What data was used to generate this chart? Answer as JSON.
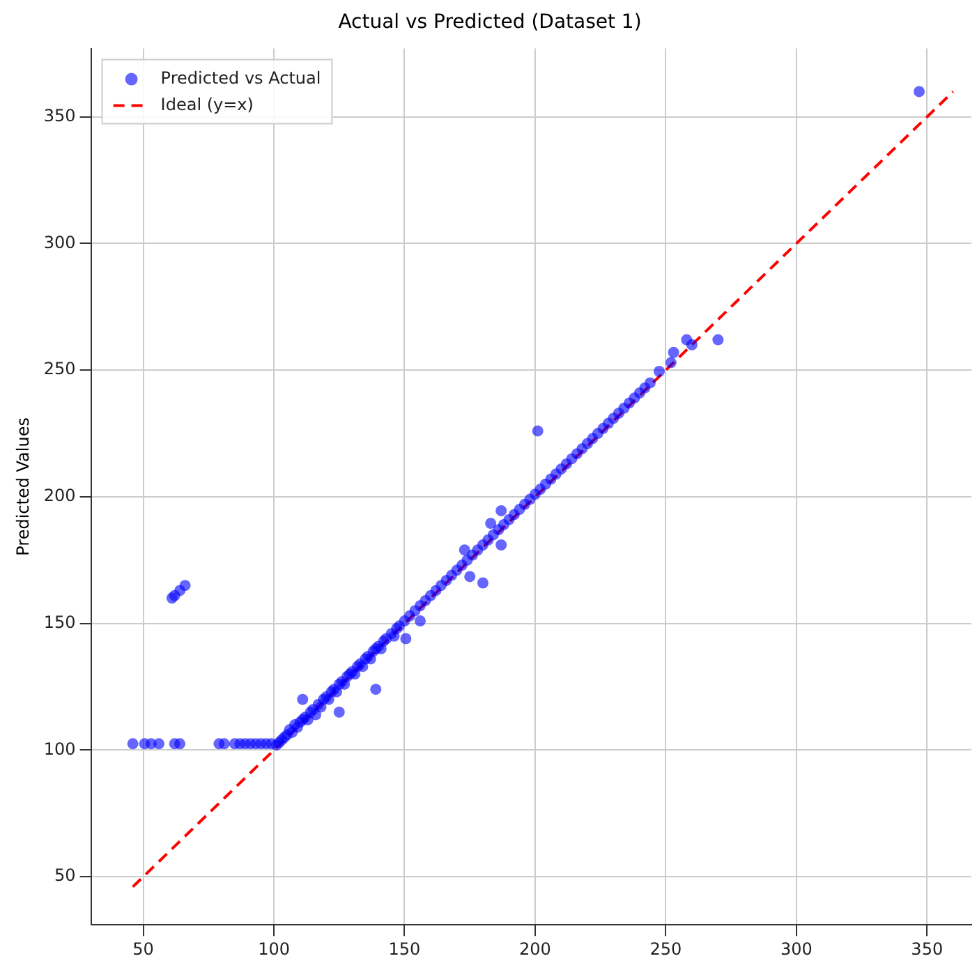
{
  "chart_data": {
    "type": "scatter",
    "title": "Actual vs Predicted (Dataset 1)",
    "ylabel": "Predicted Values",
    "xlim": [
      30,
      367
    ],
    "ylim": [
      31,
      377
    ],
    "xticks": [
      50,
      100,
      150,
      200,
      250,
      300,
      350
    ],
    "yticks": [
      50,
      100,
      150,
      200,
      250,
      300,
      350
    ],
    "grid": true,
    "legend": "top left",
    "series": [
      {
        "name": "Predicted vs Actual",
        "color": "#0000ff",
        "marker": "circle",
        "x": [
          46,
          50.5,
          53,
          56,
          62,
          64,
          79,
          81,
          85,
          87,
          89,
          91,
          93,
          95,
          97,
          99,
          61,
          62,
          64,
          66,
          101,
          102,
          103,
          104,
          105,
          106,
          107,
          108,
          109,
          110,
          111,
          112,
          113,
          114,
          115,
          116,
          117,
          118,
          119,
          120,
          121,
          122,
          123,
          124,
          125,
          126,
          127,
          128,
          129,
          130,
          131,
          132,
          133,
          134,
          135,
          136,
          137,
          138,
          139,
          140,
          141,
          142,
          143,
          145,
          146,
          147,
          148,
          150,
          152,
          154,
          156,
          158,
          160,
          162,
          164,
          166,
          168,
          170,
          172,
          174,
          176,
          178,
          180,
          182,
          184,
          186,
          188,
          190,
          192,
          194,
          196,
          198,
          200,
          202,
          204,
          206,
          208,
          210,
          212,
          214,
          216,
          218,
          220,
          222,
          224,
          226,
          228,
          230,
          232,
          234,
          236,
          238,
          240,
          242,
          244,
          139,
          125,
          201,
          180,
          175,
          187,
          173,
          187,
          183,
          111,
          150.5,
          156,
          347,
          270,
          258,
          260,
          253,
          252,
          247.5
        ],
        "values": [
          102.5,
          102.5,
          102.5,
          102.5,
          102.5,
          102.5,
          102.5,
          102.5,
          102.5,
          102.5,
          102.5,
          102.5,
          102.5,
          102.5,
          102.5,
          102.5,
          160,
          161,
          163,
          165,
          102,
          103,
          104,
          105,
          106,
          108,
          107,
          110,
          109,
          111,
          112,
          113,
          112,
          115,
          116,
          114,
          118,
          117,
          120,
          121,
          120,
          123,
          124,
          123,
          126,
          127,
          126,
          129,
          130,
          131,
          130,
          133,
          134,
          133,
          136,
          137,
          136,
          139,
          140,
          141,
          140,
          143,
          144,
          146,
          145,
          148,
          149,
          151,
          153,
          155,
          157,
          159,
          161,
          163,
          165,
          167,
          169,
          171,
          173,
          175,
          177,
          179,
          181,
          183,
          185,
          187,
          189,
          191,
          193,
          195,
          197,
          199,
          201,
          203,
          205,
          207,
          209,
          211,
          213,
          215,
          217,
          219,
          221,
          223,
          225,
          227,
          229,
          231,
          233,
          235,
          237,
          239,
          241,
          243,
          245,
          124,
          115,
          226,
          166,
          168.5,
          181,
          179,
          194.5,
          189.5,
          120,
          144,
          151,
          360,
          262,
          262,
          260,
          257,
          253,
          249.5
        ]
      },
      {
        "name": "Ideal (y=x)",
        "type": "line",
        "color": "#ff0000",
        "line_style": "dashed",
        "marker": "none",
        "x": [
          46,
          360
        ],
        "values": [
          46,
          360
        ]
      }
    ]
  }
}
